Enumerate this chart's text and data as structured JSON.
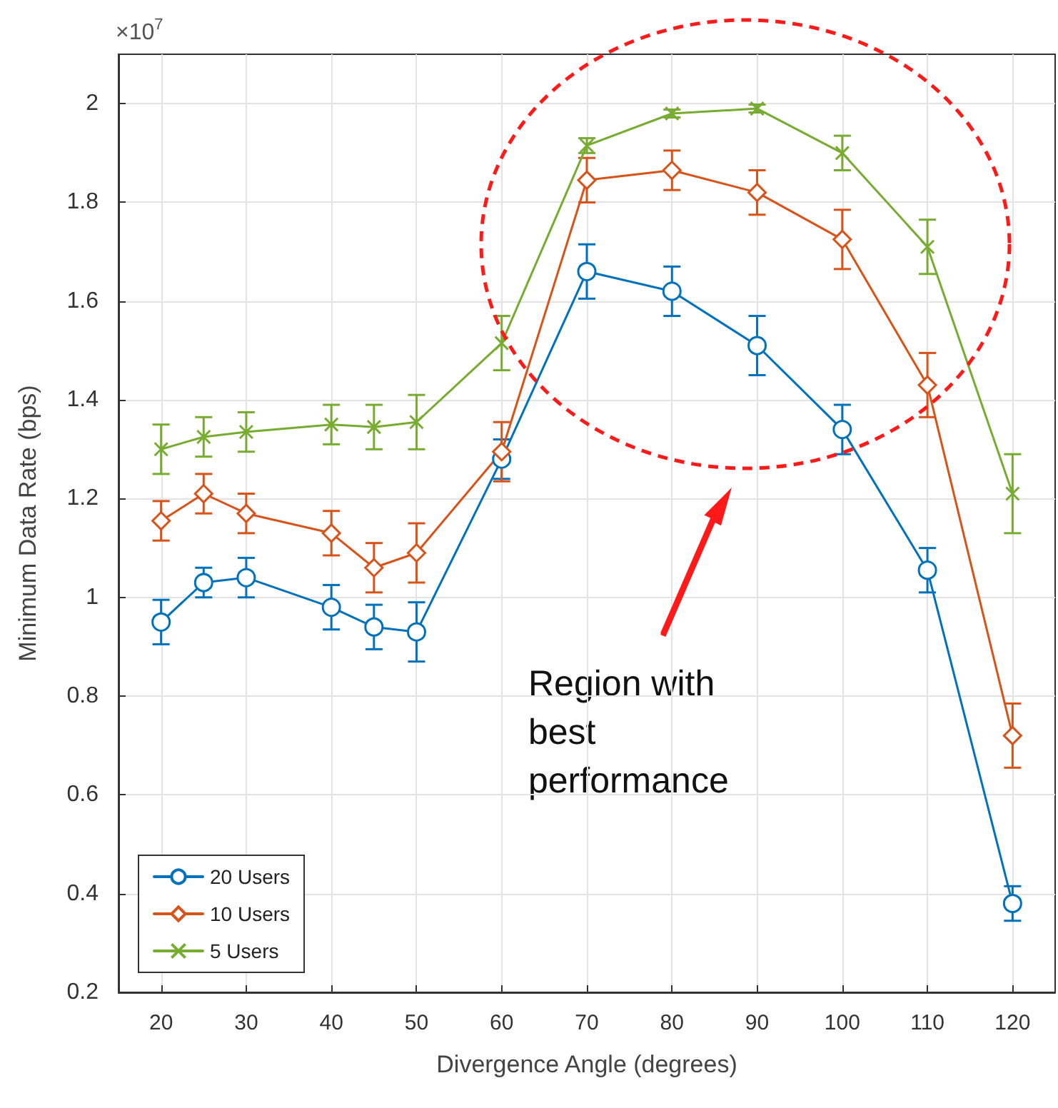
{
  "chart_data": {
    "type": "line",
    "xlabel": "Divergence Angle (degrees)",
    "ylabel": "Minimum Data Rate (bps)",
    "annotations": [
      "×10$^{7}$",
      "Region with best performance"
    ],
    "x": [
      20,
      25,
      30,
      40,
      45,
      50,
      60,
      70,
      80,
      90,
      100,
      110,
      120
    ],
    "series": [
      {
        "name": "20 Users",
        "color": "#0072bd",
        "marker": "circle",
        "values": [
          0.95,
          1.03,
          1.04,
          0.98,
          0.94,
          0.93,
          1.28,
          1.66,
          1.62,
          1.51,
          1.34,
          1.055,
          0.38
        ],
        "errors": [
          0.045,
          0.03,
          0.04,
          0.045,
          0.045,
          0.06,
          0.04,
          0.055,
          0.05,
          0.06,
          0.05,
          0.045,
          0.035
        ]
      },
      {
        "name": "10 Users",
        "color": "#d95319",
        "marker": "diamond",
        "values": [
          1.155,
          1.21,
          1.17,
          1.13,
          1.06,
          1.09,
          1.295,
          1.845,
          1.865,
          1.82,
          1.725,
          1.43,
          0.72
        ],
        "errors": [
          0.04,
          0.04,
          0.04,
          0.045,
          0.05,
          0.06,
          0.06,
          0.045,
          0.04,
          0.045,
          0.06,
          0.065,
          0.065
        ]
      },
      {
        "name": "5 Users",
        "color": "#77ac30",
        "marker": "cross",
        "values": [
          1.3,
          1.325,
          1.335,
          1.35,
          1.345,
          1.355,
          1.515,
          1.915,
          1.98,
          1.99,
          1.9,
          1.71,
          1.21
        ],
        "errors": [
          0.05,
          0.04,
          0.04,
          0.04,
          0.045,
          0.055,
          0.055,
          0.015,
          0.008,
          0.008,
          0.035,
          0.055,
          0.08
        ]
      }
    ],
    "xlim": [
      15,
      125
    ],
    "xticks": [
      20,
      30,
      40,
      50,
      60,
      70,
      80,
      90,
      100,
      110,
      120
    ],
    "ylim": [
      0.2,
      2.1
    ],
    "yticks": [
      0.2,
      0.4,
      0.6,
      0.8,
      1,
      1.2,
      1.4,
      1.6,
      1.8,
      2
    ],
    "grid": true,
    "legend": "bottom left",
    "line_style": "solid"
  }
}
